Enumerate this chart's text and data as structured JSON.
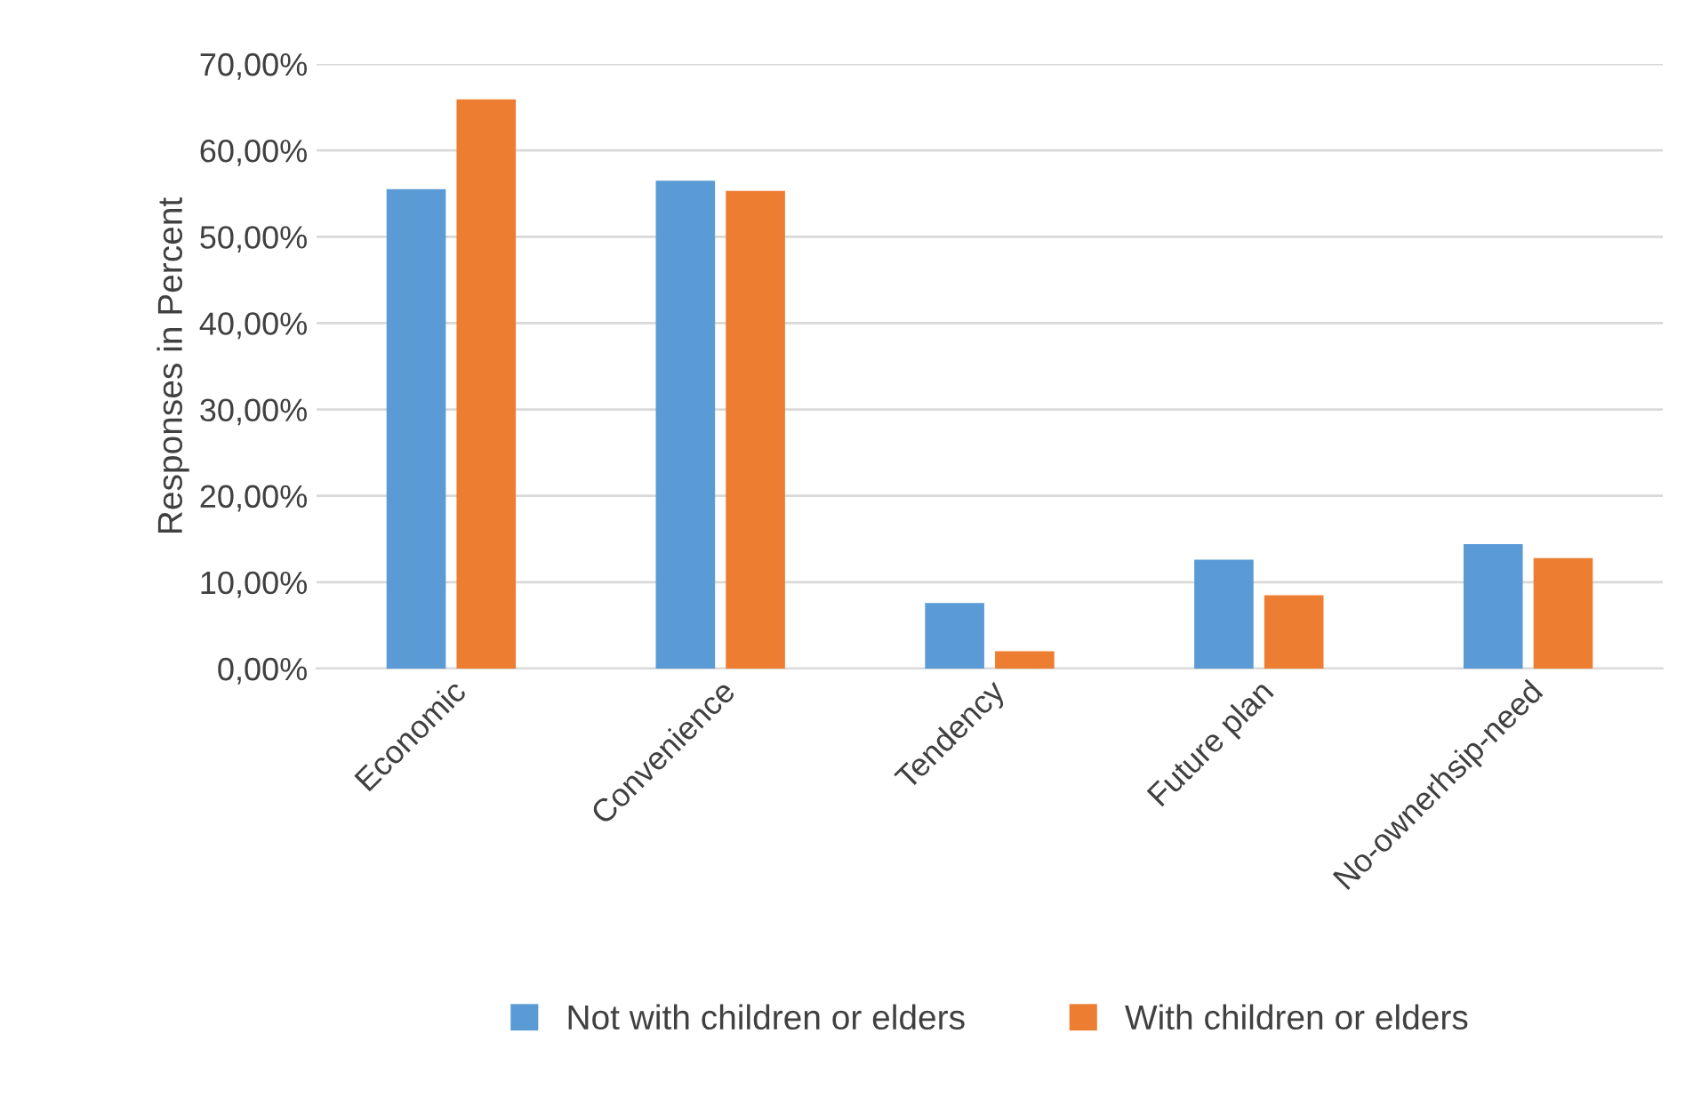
{
  "chart_data": {
    "type": "bar",
    "ylabel": "Responses in Percent",
    "categories": [
      "Economic",
      "Convenience",
      "Tendency",
      "Future plan",
      "No-ownerhsip-need"
    ],
    "series": [
      {
        "name": "Not with children or elders",
        "color": "#5b9bd5",
        "values": [
          55.5,
          56.5,
          7.6,
          12.6,
          14.4
        ]
      },
      {
        "name": "With children or elders",
        "color": "#ed7d31",
        "values": [
          65.9,
          55.3,
          2.0,
          8.5,
          12.8
        ]
      }
    ],
    "ylim": [
      0,
      70
    ],
    "yticks": [
      {
        "value": 0,
        "label": "0,00%"
      },
      {
        "value": 10,
        "label": "10,00%"
      },
      {
        "value": 20,
        "label": "20,00%"
      },
      {
        "value": 30,
        "label": "30,00%"
      },
      {
        "value": 40,
        "label": "40,00%"
      },
      {
        "value": 50,
        "label": "50,00%"
      },
      {
        "value": 60,
        "label": "60,00%"
      },
      {
        "value": 70,
        "label": "70,00%"
      }
    ],
    "grid": "y",
    "legend": "bottom"
  }
}
